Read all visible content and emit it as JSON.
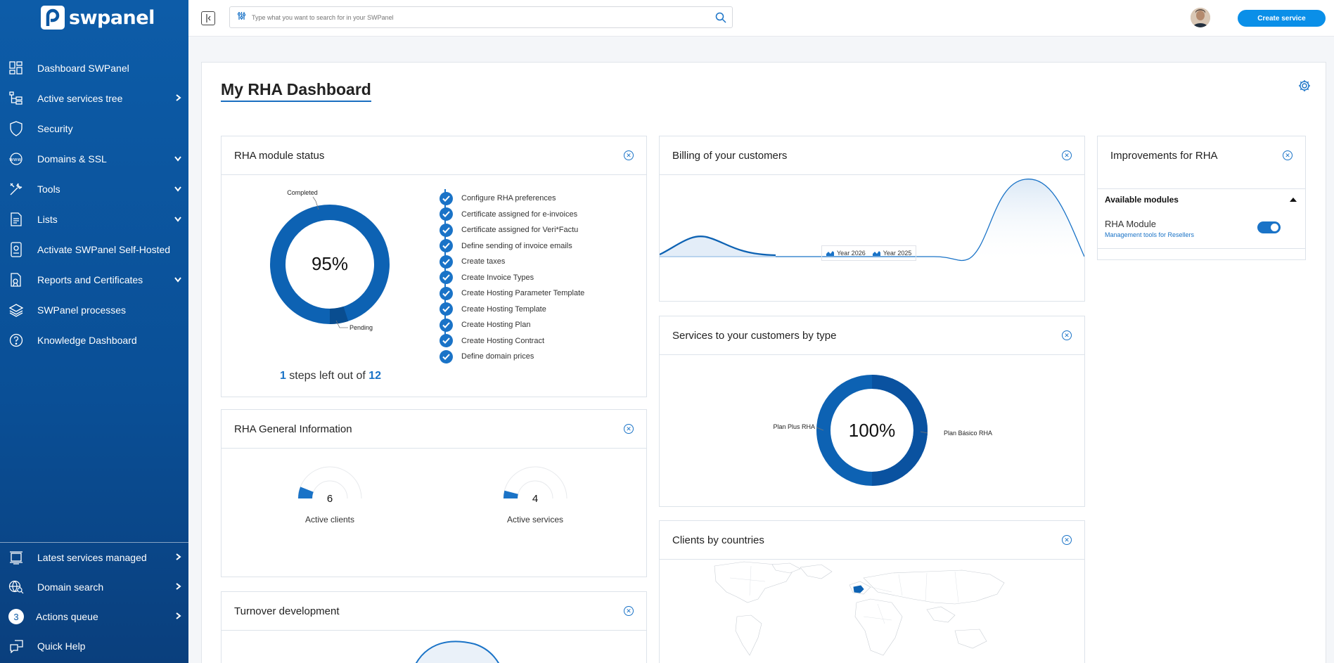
{
  "sidebar": {
    "logo": "swpanel",
    "items": [
      {
        "label": "Dashboard SWPanel",
        "icon": "dashboard-icon",
        "chevron": "none"
      },
      {
        "label": "Active services tree",
        "icon": "tree-icon",
        "chevron": "right"
      },
      {
        "label": "Security",
        "icon": "shield-icon",
        "chevron": "none"
      },
      {
        "label": "Domains & SSL",
        "icon": "globe-www-icon",
        "chevron": "down"
      },
      {
        "label": "Tools",
        "icon": "tools-icon",
        "chevron": "down"
      },
      {
        "label": "Lists",
        "icon": "list-icon",
        "chevron": "down"
      },
      {
        "label": "Activate SWPanel Self-Hosted",
        "icon": "self-hosted-icon",
        "chevron": "none"
      },
      {
        "label": "Reports and Certificates",
        "icon": "report-icon",
        "chevron": "down"
      },
      {
        "label": "SWPanel processes",
        "icon": "layers-icon",
        "chevron": "none"
      },
      {
        "label": "Knowledge Dashboard",
        "icon": "help-icon",
        "chevron": "none"
      }
    ],
    "bottom_items": [
      {
        "label": "Latest services managed",
        "icon": "history-icon"
      },
      {
        "label": "Domain search",
        "icon": "domain-search-icon"
      },
      {
        "label": "Actions queue",
        "badge": "3"
      },
      {
        "label": "Quick Help",
        "icon": "quick-help-icon"
      }
    ]
  },
  "topbar": {
    "search_placeholder": "Type what you want to search for in your SWPanel",
    "create_label": "Create service"
  },
  "page": {
    "title": "My RHA Dashboard"
  },
  "module_status": {
    "title": "RHA module status",
    "percent": "95%",
    "completed_label": "Completed",
    "pending_label": "Pending",
    "completed_fraction": 0.95,
    "steps_left": "1",
    "steps_mid": " steps left out of ",
    "steps_total": "12",
    "checklist": [
      "Configure RHA preferences",
      "Certificate assigned for e-invoices",
      "Certificate assigned for Veri*Factu",
      "Define sending of invoice emails",
      "Create taxes",
      "Create Invoice Types",
      "Create Hosting Parameter Template",
      "Create Hosting Template",
      "Create Hosting Plan",
      "Create Hosting Contract",
      "Define domain prices"
    ]
  },
  "general_info": {
    "title": "RHA General Information",
    "clients_value": "6",
    "clients_label": "Active clients",
    "clients_fraction": 0.12,
    "services_value": "4",
    "services_label": "Active services",
    "services_fraction": 0.08
  },
  "turnover": {
    "title": "Turnover development"
  },
  "billing": {
    "title": "Billing of your customers",
    "legend": [
      "Year 2026",
      "Year 2025"
    ]
  },
  "services_by_type": {
    "title": "Services to your customers by type",
    "percent": "100%",
    "left_label": "Plan Plus RHA",
    "right_label": "Plan Básico RHA"
  },
  "countries": {
    "title": "Clients by countries"
  },
  "improvements": {
    "title": "Improvements for RHA",
    "section_title": "Available modules",
    "module_name": "RHA Module",
    "module_desc": "Management tools for Resellers",
    "enabled": true
  },
  "colors": {
    "primary": "#1a73c7",
    "sidebar": "#0b57a2",
    "accent": "#0a8fe8"
  }
}
